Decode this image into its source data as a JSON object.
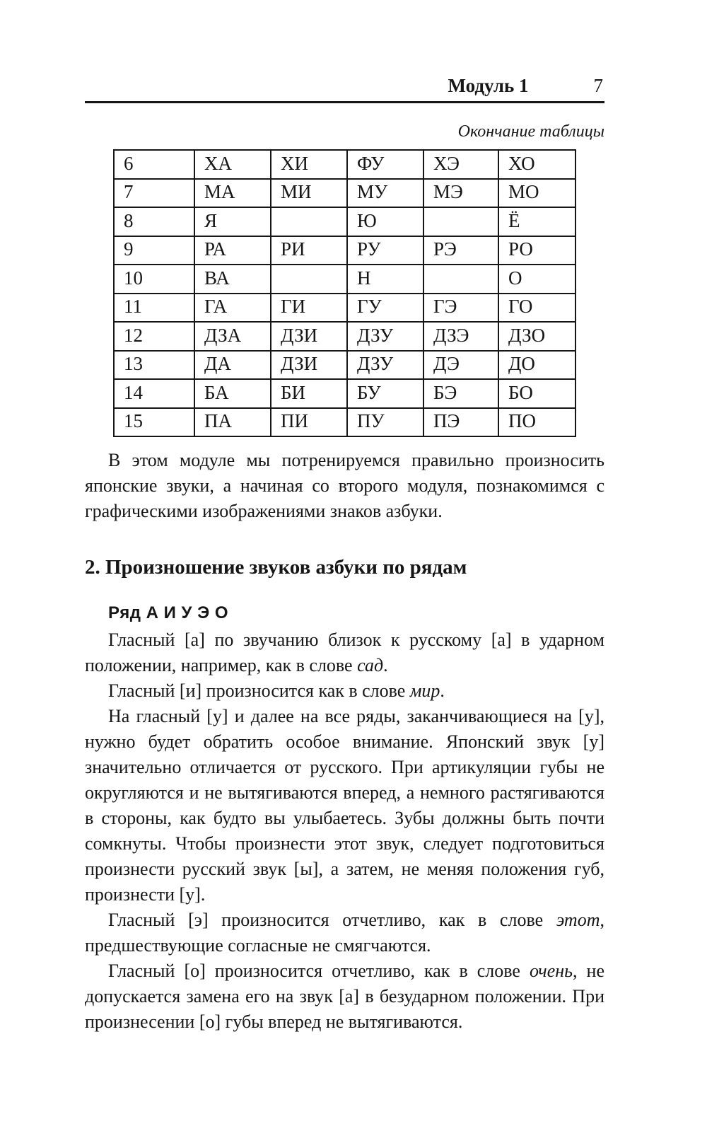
{
  "page": {
    "header": {
      "module_label": "Модуль 1",
      "page_number": "7"
    },
    "table_caption": "Окончание таблицы",
    "table": {
      "rows": [
        [
          "6",
          "ХА",
          "ХИ",
          "ФУ",
          "ХЭ",
          "ХО"
        ],
        [
          "7",
          "МА",
          "МИ",
          "МУ",
          "МЭ",
          "МО"
        ],
        [
          "8",
          "Я",
          "",
          "Ю",
          "",
          "Ё"
        ],
        [
          "9",
          "РА",
          "РИ",
          "РУ",
          "РЭ",
          "РО"
        ],
        [
          "10",
          "ВА",
          "",
          "Н",
          "",
          "О"
        ],
        [
          "11",
          "ГА",
          "ГИ",
          "ГУ",
          "ГЭ",
          "ГО"
        ],
        [
          "12",
          "ДЗА",
          "ДЗИ",
          "ДЗУ",
          "ДЗЭ",
          "ДЗО"
        ],
        [
          "13",
          "ДА",
          "ДЗИ",
          "ДЗУ",
          "ДЭ",
          "ДО"
        ],
        [
          "14",
          "БА",
          "БИ",
          "БУ",
          "БЭ",
          "БО"
        ],
        [
          "15",
          "ПА",
          "ПИ",
          "ПУ",
          "ПЭ",
          "ПО"
        ]
      ]
    },
    "intro_paragraph": "В этом модуле мы потренируемся правильно произносить японские звуки, а начиная со второго модуля, познакомимся с графическими изображениями знаков азбуки.",
    "section_heading": "2. Произношение звуков азбуки по рядам",
    "row_heading": "Ряд А И У Э О",
    "paragraphs": [
      {
        "parts": [
          {
            "text": "Гласный [а] по звучанию близок к русскому [а] в ударном положении, например, как в слове ",
            "italic": false
          },
          {
            "text": "сад",
            "italic": true
          },
          {
            "text": ".",
            "italic": false
          }
        ]
      },
      {
        "parts": [
          {
            "text": "Гласный [и] произносится как в слове ",
            "italic": false
          },
          {
            "text": "мир",
            "italic": true
          },
          {
            "text": ".",
            "italic": false
          }
        ]
      },
      {
        "parts": [
          {
            "text": "На гласный [у] и далее на все ряды, заканчивающиеся на [у], нужно будет обратить особое внимание. Японский звук [у] значительно отличается от русского. При артикуляции губы не округляются и не вытягиваются вперед, а немного растягиваются в стороны, как будто вы улыбаетесь. Зубы должны быть почти сомкнуты. Чтобы произнести этот звук, следует подготовиться произнести русский звук [ы], а затем, не меняя положения губ, произнести [у].",
            "italic": false
          }
        ]
      },
      {
        "parts": [
          {
            "text": "Гласный [э] произносится отчетливо, как в слове ",
            "italic": false
          },
          {
            "text": "этот",
            "italic": true
          },
          {
            "text": ", предшествующие согласные не смягчаются.",
            "italic": false
          }
        ]
      },
      {
        "parts": [
          {
            "text": "Гласный [о] произносится отчетливо, как в слове ",
            "italic": false
          },
          {
            "text": "очень",
            "italic": true
          },
          {
            "text": ", не допускается замена его на звук [а] в безударном положении. При произнесении [о] губы вперед не вытягиваются.",
            "italic": false
          }
        ]
      }
    ],
    "colors": {
      "text": "#161616",
      "background": "#ffffff",
      "border": "#161616"
    }
  }
}
